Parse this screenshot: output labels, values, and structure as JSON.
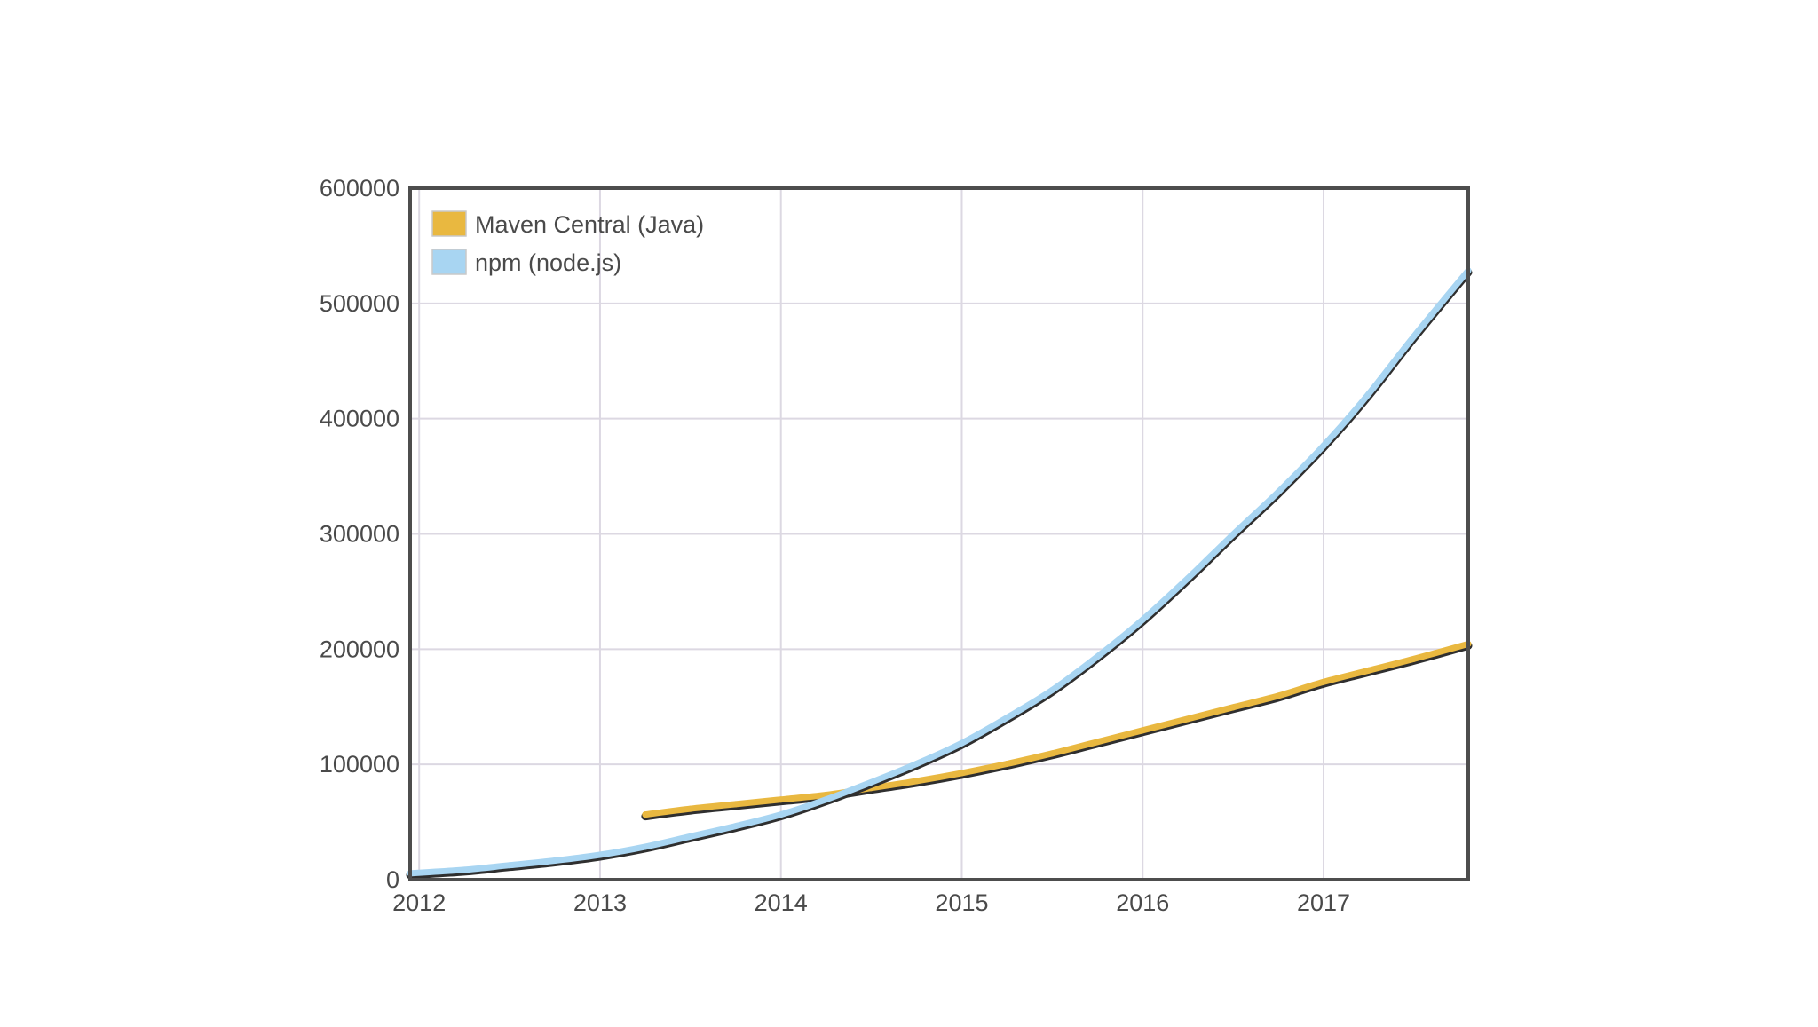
{
  "chart_data": {
    "type": "line",
    "title": "",
    "xlabel": "",
    "ylabel": "",
    "xlim": [
      2011.95,
      2017.8
    ],
    "ylim": [
      0,
      600000
    ],
    "grid": true,
    "legend_position": "top-left",
    "x_ticks": [
      "2012",
      "2013",
      "2014",
      "2015",
      "2016",
      "2017"
    ],
    "y_ticks": [
      "0",
      "100000",
      "200000",
      "300000",
      "400000",
      "500000",
      "600000"
    ],
    "series": [
      {
        "name": "Maven Central (Java)",
        "color": "#e9b840",
        "x": [
          2013.25,
          2013.5,
          2013.75,
          2014.0,
          2014.25,
          2014.5,
          2014.75,
          2015.0,
          2015.25,
          2015.5,
          2015.75,
          2016.0,
          2016.25,
          2016.5,
          2016.75,
          2017.0,
          2017.25,
          2017.5,
          2017.8
        ],
        "y": [
          55000,
          60000,
          64000,
          68000,
          72000,
          78000,
          84000,
          91000,
          99000,
          108000,
          118000,
          128000,
          138000,
          148000,
          158000,
          170000,
          180000,
          190000,
          203000
        ]
      },
      {
        "name": "npm (node.js)",
        "color": "#a8d5f2",
        "x": [
          2011.95,
          2012.25,
          2012.5,
          2012.75,
          2013.0,
          2013.25,
          2013.5,
          2013.75,
          2014.0,
          2014.25,
          2014.5,
          2014.75,
          2015.0,
          2015.25,
          2015.5,
          2015.75,
          2016.0,
          2016.25,
          2016.5,
          2016.75,
          2017.0,
          2017.25,
          2017.5,
          2017.8
        ],
        "y": [
          4000,
          7000,
          11000,
          15000,
          20000,
          27000,
          36000,
          45000,
          55000,
          68000,
          83000,
          99000,
          117000,
          139000,
          163000,
          192000,
          224000,
          260000,
          298000,
          335000,
          375000,
          420000,
          470000,
          527000
        ]
      }
    ]
  }
}
